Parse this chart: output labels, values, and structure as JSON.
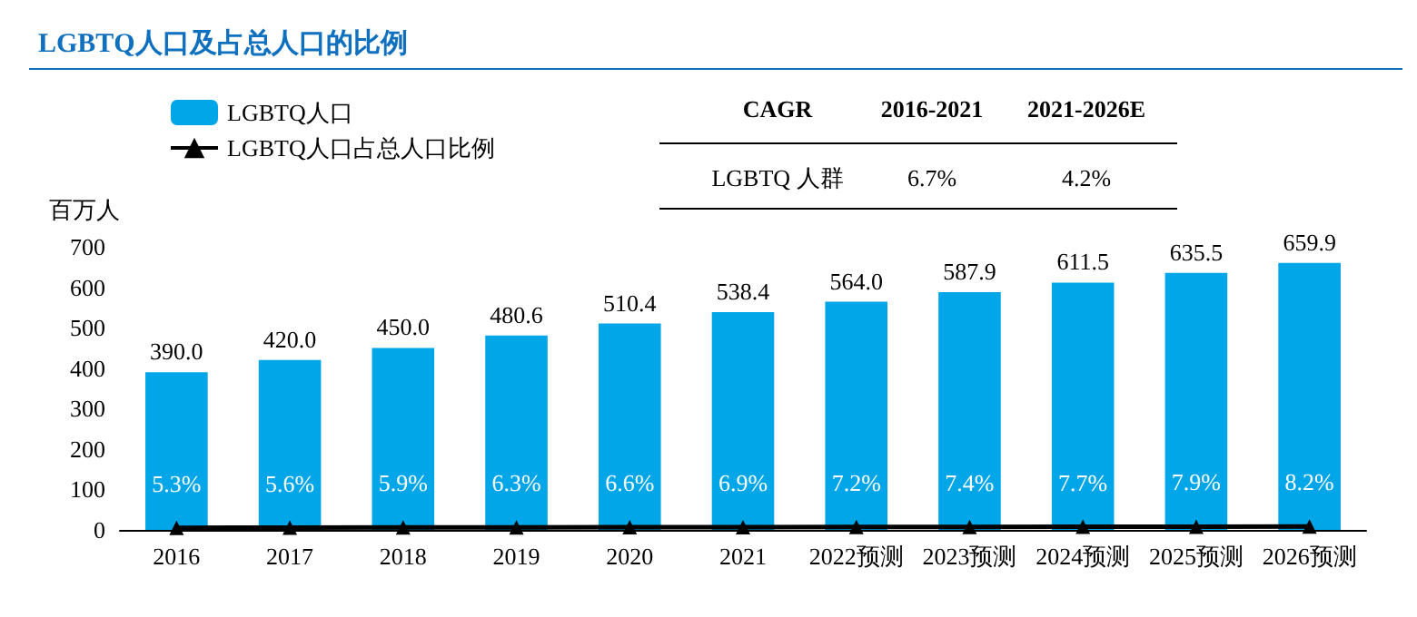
{
  "chart_data": {
    "type": "bar",
    "title": "LGBTQ人口及占总人口的比例",
    "ylabel": "百万人",
    "categories": [
      "2016",
      "2017",
      "2018",
      "2019",
      "2020",
      "2021",
      "2022预测",
      "2023预测",
      "2024预测",
      "2025预测",
      "2026预测"
    ],
    "series": [
      {
        "name": "LGBTQ人口",
        "color": "#00a6e8",
        "values": [
          390.0,
          420.0,
          450.0,
          480.6,
          510.4,
          538.4,
          564.0,
          587.9,
          611.5,
          635.5,
          659.9
        ],
        "value_labels": [
          "390.0",
          "420.0",
          "450.0",
          "480.6",
          "510.4",
          "538.4",
          "564.0",
          "587.9",
          "611.5",
          "635.5",
          "659.9"
        ]
      },
      {
        "name": "LGBTQ人口占总人口比例",
        "type": "line",
        "color": "#000000",
        "marker": "triangle",
        "values": [
          5.3,
          5.6,
          5.9,
          6.3,
          6.6,
          6.9,
          7.2,
          7.4,
          7.7,
          7.9,
          8.2
        ],
        "value_labels": [
          "5.3%",
          "5.6%",
          "5.9%",
          "6.3%",
          "6.6%",
          "6.9%",
          "7.2%",
          "7.4%",
          "7.7%",
          "7.9%",
          "8.2%"
        ]
      }
    ],
    "ylim": [
      0,
      700
    ],
    "yticks": [
      0,
      100,
      200,
      300,
      400,
      500,
      600,
      700
    ],
    "annotations": [
      "CAGR",
      "2016-2021",
      "2021-2026E",
      "LGBTQ 人群",
      "6.7%",
      "4.2%"
    ],
    "grid": false,
    "legend": "top left"
  }
}
